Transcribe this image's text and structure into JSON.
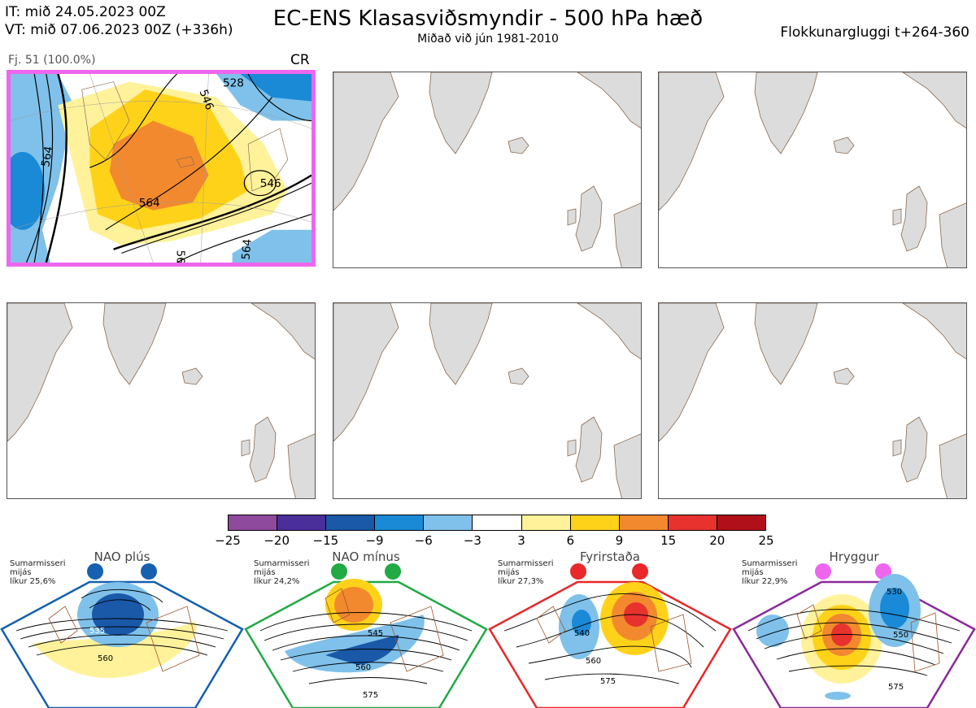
{
  "header": {
    "it_line": "IT: mið 24.05.2023 00Z",
    "vt_line": "VT: mið 07.06.2023 00Z  (+336h)",
    "title": "EC-ENS Klasasviðsmyndir - 500 hPa hæð",
    "subtitle": "Miðað við jún 1981-2010",
    "window": "Flokkunargluggi t+264-360"
  },
  "cluster": {
    "label": "Fj. 51 (100.0%)",
    "regime_code": "CR",
    "selected_color": "#ee66ee",
    "contour_labels": [
      "564",
      "564",
      "546",
      "546",
      "528",
      "564",
      "564"
    ]
  },
  "colorbar": {
    "colors": [
      "#8e4a9c",
      "#4a2e9a",
      "#1a58a8",
      "#1a8ad6",
      "#7fc1ea",
      "#ffffff",
      "#fff29a",
      "#ffd21a",
      "#f2892e",
      "#e8322e",
      "#b0101a"
    ],
    "ticks": [
      "−25",
      "−20",
      "−15",
      "−9",
      "−6",
      "−3",
      "3",
      "6",
      "9",
      "15",
      "20",
      "25"
    ]
  },
  "regimes": [
    {
      "name": "NAO plús",
      "season": "Sumarmisseri",
      "mean": "mijás",
      "prob": "líkur 25,6%",
      "color": "#1560b0",
      "labels": [
        "535",
        "560"
      ]
    },
    {
      "name": "NAO mínus",
      "season": "Sumarmisseri",
      "mean": "mijás",
      "prob": "líkur 24,2%",
      "color": "#22aa44",
      "labels": [
        "545",
        "560",
        "575"
      ]
    },
    {
      "name": "Fyrirstaða",
      "season": "Sumarmisseri",
      "mean": "mijás",
      "prob": "líkur 27,3%",
      "color": "#e8282a",
      "labels": [
        "540",
        "560",
        "575"
      ]
    },
    {
      "name": "Hryggur",
      "season": "Sumarmisseri",
      "mean": "mijás",
      "prob": "líkur 22,9%",
      "color": "#ee66ee",
      "labels": [
        "530",
        "550",
        "575"
      ]
    }
  ]
}
